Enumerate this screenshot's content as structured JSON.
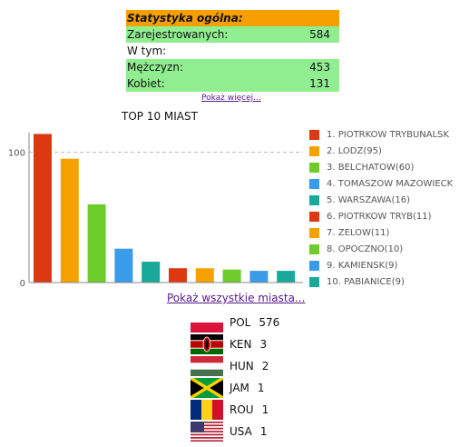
{
  "stats": {
    "title": "Statystyka ogólna:",
    "rows": [
      {
        "label": "Zarejestrowanych:",
        "value": "584"
      },
      {
        "label": "W tym:",
        "value": ""
      },
      {
        "label": "Mężczyzn:",
        "value": "453"
      },
      {
        "label": "Kobiet:",
        "value": "131"
      }
    ],
    "show_more": "Pokaż więcej..."
  },
  "chart_data": {
    "type": "bar",
    "title": "TOP 10 MIAST",
    "ylim": [
      0,
      115
    ],
    "yticks": [
      0,
      100
    ],
    "categories": [
      "1. PIOTRKOW TRYBUNALSK",
      "2. LODZ(95)",
      "3. BELCHATOW(60)",
      "4. TOMASZOW MAZOWIECK",
      "5. WARSZAWA(16)",
      "6. PIOTRKOW TRYB(11)",
      "7. ZELOW(11)",
      "8. OPOCZNO(10)",
      "9. KAMIENSK(9)",
      "10. PABIANICE(9)"
    ],
    "values": [
      114,
      95,
      60,
      26,
      16,
      11,
      11,
      10,
      9,
      9
    ],
    "colors": [
      "#dc3912",
      "#f5a100",
      "#6ecc2b",
      "#3a9be8",
      "#18a99a",
      "#dc3912",
      "#f5a100",
      "#6ecc2b",
      "#3a9be8",
      "#18a99a"
    ],
    "legend": "right",
    "grid": "dashed line at 100"
  },
  "all_cities_link": "Pokaż wszystkie miasta...",
  "countries": [
    {
      "code": "POL",
      "count": "576",
      "flag": "pol-flag-icon"
    },
    {
      "code": "KEN",
      "count": "3",
      "flag": "ken-flag-icon"
    },
    {
      "code": "HUN",
      "count": "2",
      "flag": "hun-flag-icon"
    },
    {
      "code": "JAM",
      "count": "1",
      "flag": "jam-flag-icon"
    },
    {
      "code": "ROU",
      "count": "1",
      "flag": "rou-flag-icon"
    },
    {
      "code": "USA",
      "count": "1",
      "flag": "usa-flag-icon"
    }
  ]
}
